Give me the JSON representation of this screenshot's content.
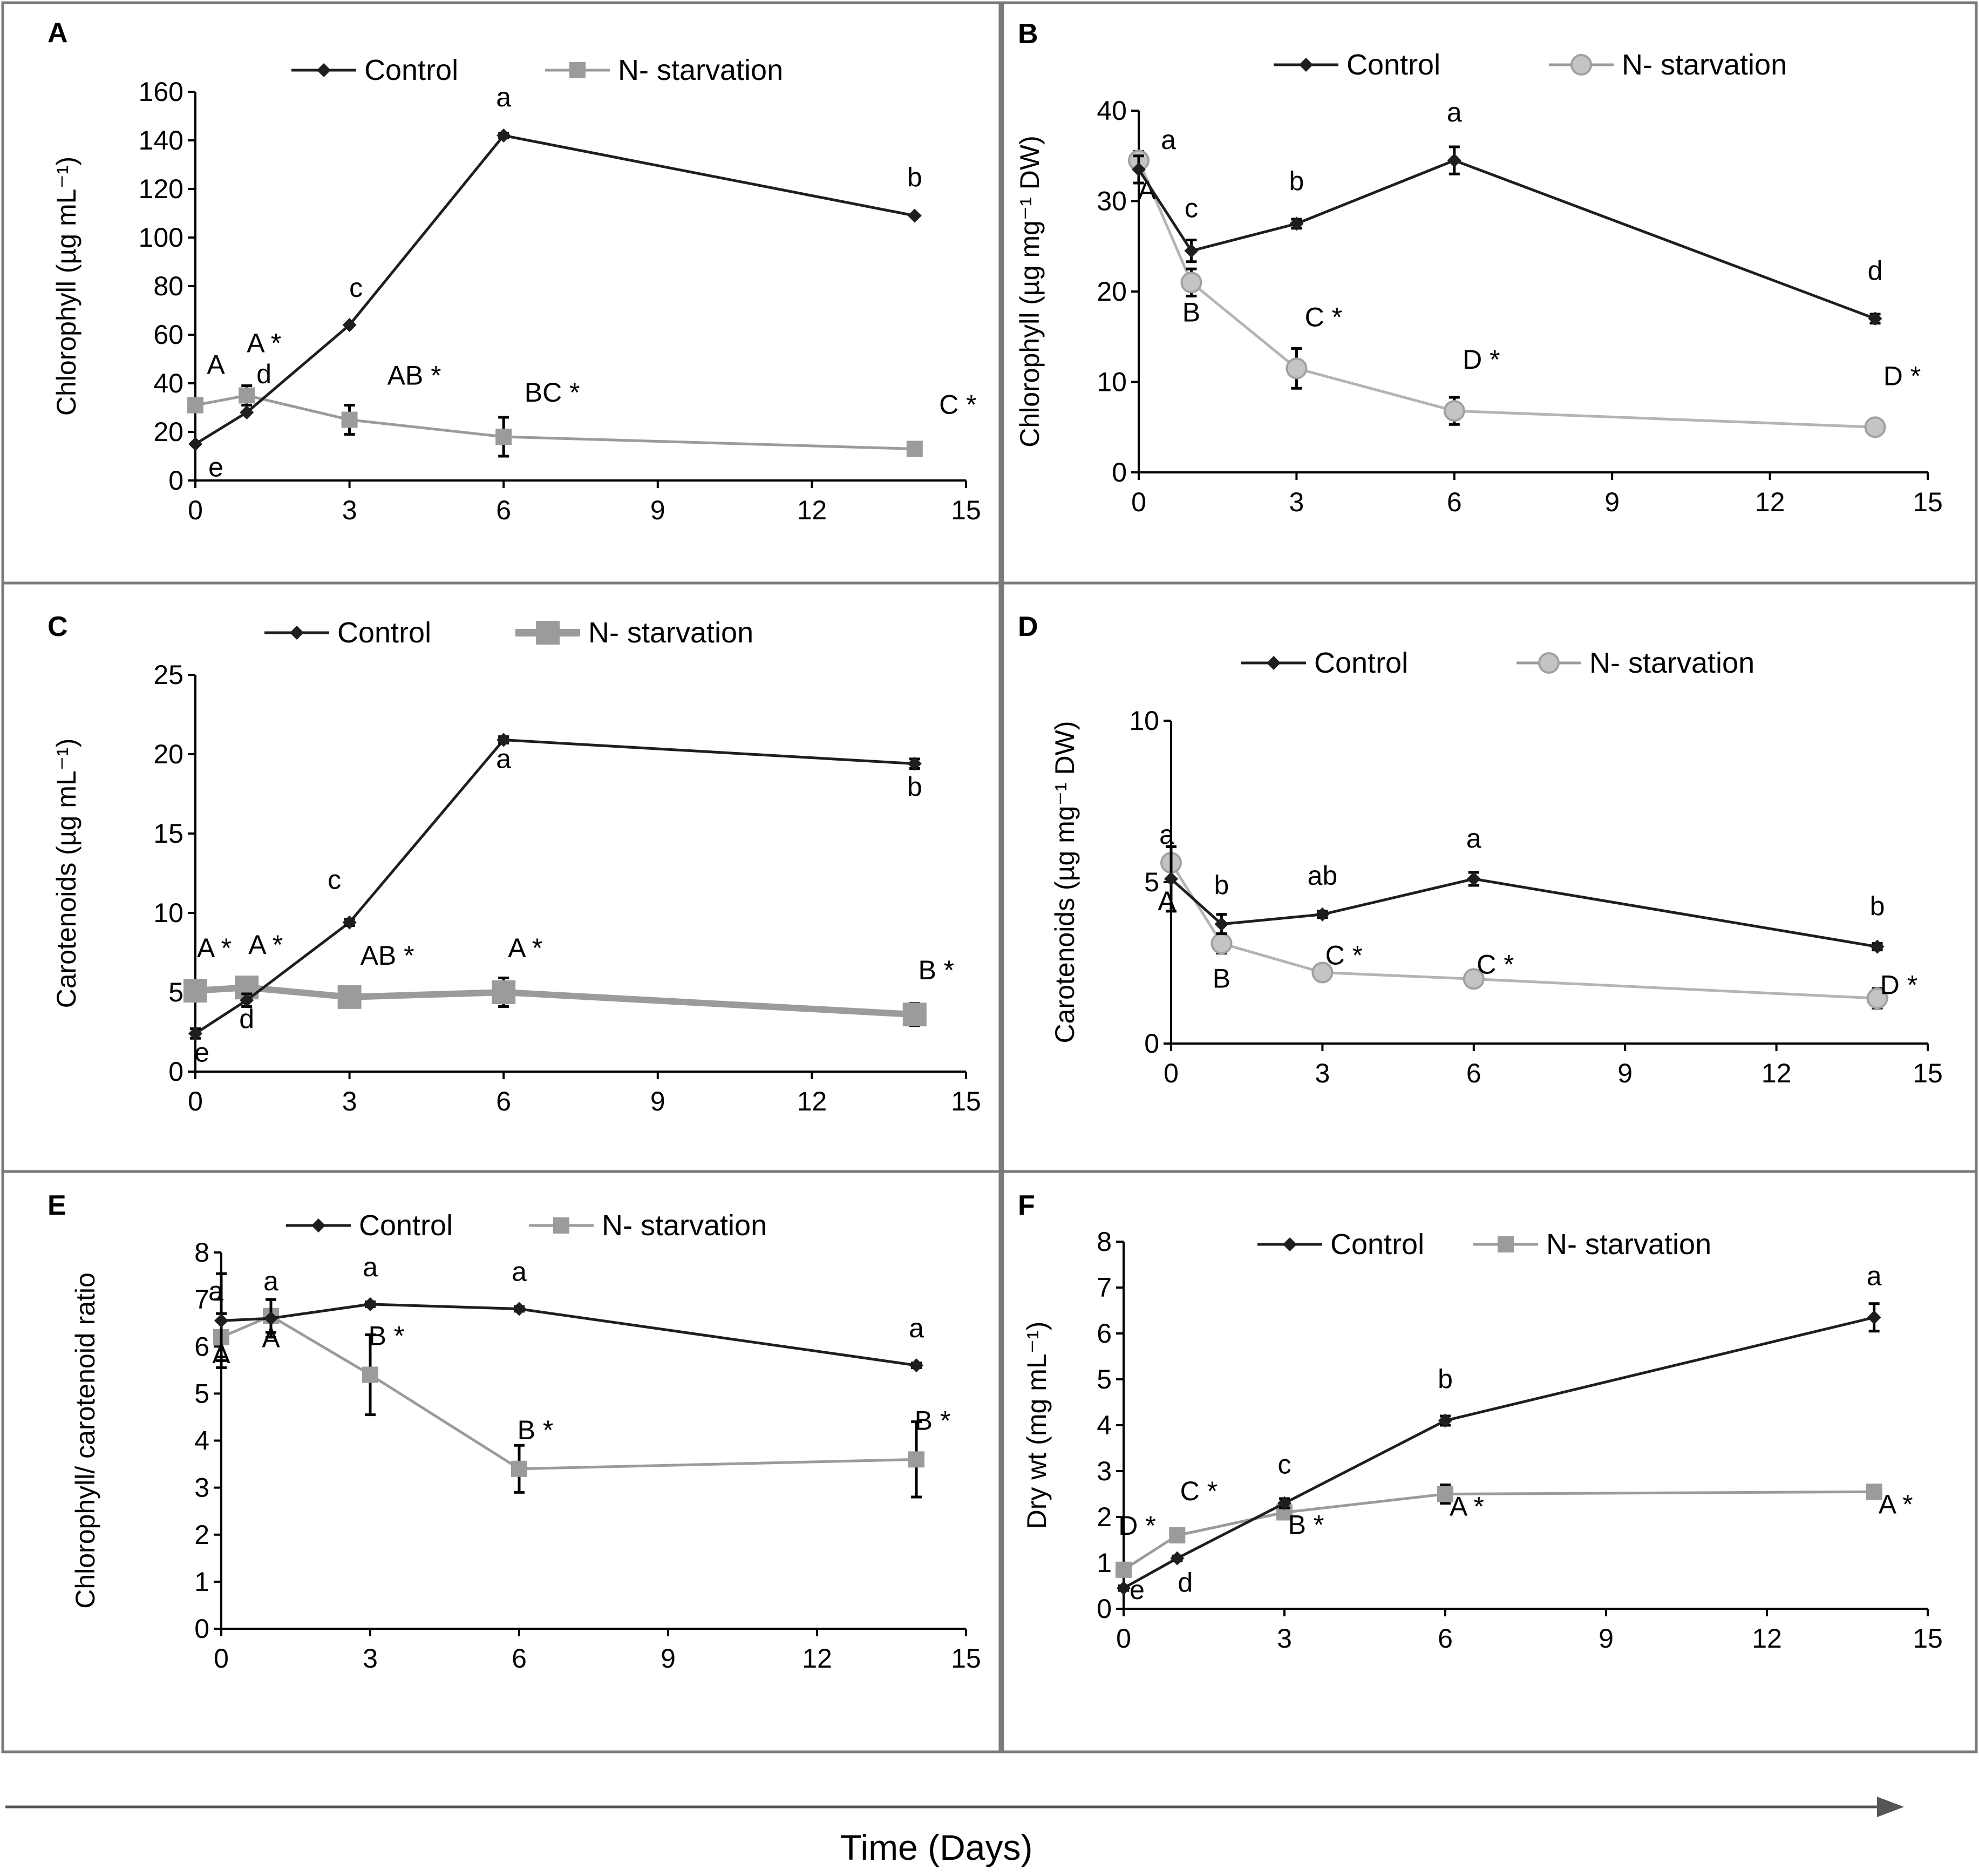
{
  "figure": {
    "xaxis_label": "Time (Days)",
    "colors": {
      "control": "#1e1e1e",
      "nstarv": "#9b9b9b",
      "nstarv_light": "#b4b4b4",
      "frame": "#7a7a7a"
    }
  },
  "chart_data": [
    {
      "panel": "A",
      "type": "line",
      "ylabel": "Chlorophyll (µg mL⁻¹)",
      "ylim": [
        0,
        160
      ],
      "yticks": [
        0,
        20,
        40,
        60,
        80,
        100,
        120,
        140,
        160
      ],
      "xlim": [
        0,
        15
      ],
      "xticks": [
        0,
        3,
        6,
        9,
        12,
        15
      ],
      "legend": [
        "Control",
        "N- starvation"
      ],
      "series": [
        {
          "name": "Control",
          "marker": "diamond",
          "x": [
            0,
            1,
            3,
            6,
            14
          ],
          "values": [
            15,
            28,
            64,
            142,
            109
          ],
          "err": [
            0,
            0,
            0,
            1,
            0
          ],
          "labels": [
            "e",
            "d",
            "c",
            "a",
            "b"
          ]
        },
        {
          "name": "N- starvation",
          "marker": "square",
          "x": [
            0,
            1,
            3,
            6,
            14
          ],
          "values": [
            31,
            35,
            25,
            18,
            13
          ],
          "err": [
            0,
            4,
            6,
            8,
            0
          ],
          "labels": [
            "A",
            "A *",
            "AB *",
            "BC *",
            "C *"
          ]
        }
      ]
    },
    {
      "panel": "B",
      "type": "line",
      "ylabel": "Chlorophyll (µg mg⁻¹ DW)",
      "ylim": [
        0,
        40
      ],
      "yticks": [
        0,
        10,
        20,
        30,
        40
      ],
      "xlim": [
        0,
        15
      ],
      "xticks": [
        0,
        3,
        6,
        9,
        12,
        15
      ],
      "legend": [
        "Control",
        "N- starvation"
      ],
      "series": [
        {
          "name": "Control",
          "marker": "diamond",
          "x": [
            0,
            1,
            3,
            6,
            14
          ],
          "values": [
            33.5,
            24.5,
            27.5,
            34.5,
            17
          ],
          "err": [
            1.5,
            1.2,
            0.5,
            1.5,
            0.5
          ],
          "labels": [
            "a",
            "c",
            "b",
            "a",
            "d"
          ]
        },
        {
          "name": "N- starvation",
          "marker": "circle",
          "x": [
            0,
            1,
            3,
            6,
            14
          ],
          "values": [
            34.5,
            21,
            11.5,
            6.8,
            5
          ],
          "err": [
            1,
            1.5,
            2.2,
            1.5,
            0.5
          ],
          "labels": [
            "A",
            "B",
            "C *",
            "D *",
            "D *"
          ]
        }
      ]
    },
    {
      "panel": "C",
      "type": "line",
      "ylabel": "Carotenoids (µg mL⁻¹)",
      "ylim": [
        0,
        25
      ],
      "yticks": [
        0,
        5,
        10,
        15,
        20,
        25
      ],
      "xlim": [
        0,
        15
      ],
      "xticks": [
        0,
        3,
        6,
        9,
        12,
        15
      ],
      "legend": [
        "Control",
        "N- starvation"
      ],
      "series": [
        {
          "name": "Control",
          "marker": "diamond",
          "x": [
            0,
            1,
            3,
            6,
            14
          ],
          "values": [
            2.4,
            4.5,
            9.4,
            20.9,
            19.4
          ],
          "err": [
            0.3,
            0.4,
            0.2,
            0.2,
            0.3
          ],
          "labels": [
            "e",
            "d",
            "c",
            "a",
            "b"
          ]
        },
        {
          "name": "N- starvation",
          "marker": "square-large",
          "x": [
            0,
            1,
            3,
            6,
            14
          ],
          "values": [
            5.1,
            5.3,
            4.7,
            5,
            3.6
          ],
          "err": [
            0.5,
            0.6,
            0.6,
            0.9,
            0.7
          ],
          "labels": [
            "A *",
            "A *",
            "AB *",
            "A *",
            "B *"
          ]
        }
      ]
    },
    {
      "panel": "D",
      "type": "line",
      "ylabel": "Carotenoids (µg mg⁻¹ DW)",
      "ylim": [
        0,
        10
      ],
      "yticks": [
        0,
        5,
        10
      ],
      "xlim": [
        0,
        15
      ],
      "xticks": [
        0,
        3,
        6,
        9,
        12,
        15
      ],
      "legend": [
        "Control",
        "N- starvation"
      ],
      "series": [
        {
          "name": "Control",
          "marker": "diamond",
          "x": [
            0,
            1,
            3,
            6,
            14
          ],
          "values": [
            5.1,
            3.7,
            4,
            5.1,
            3
          ],
          "err": [
            1,
            0.3,
            0.1,
            0.2,
            0.1
          ],
          "labels": [
            "a",
            "b",
            "ab",
            "a",
            "b"
          ]
        },
        {
          "name": "N- starvation",
          "marker": "circle",
          "x": [
            0,
            1,
            3,
            6,
            14
          ],
          "values": [
            5.6,
            3.1,
            2.2,
            2,
            1.4
          ],
          "err": [
            0.5,
            0.3,
            0.2,
            0.1,
            0.3
          ],
          "labels": [
            "A",
            "B",
            "C *",
            "C *",
            "D *"
          ]
        }
      ]
    },
    {
      "panel": "E",
      "type": "line",
      "ylabel": "Chlorophyll/ carotenoid ratio",
      "ylim": [
        0,
        8
      ],
      "yticks": [
        0,
        1,
        2,
        3,
        4,
        5,
        6,
        7,
        8
      ],
      "xlim": [
        0,
        15
      ],
      "xticks": [
        0,
        3,
        6,
        9,
        12,
        15
      ],
      "legend": [
        "Control",
        "N- starvation"
      ],
      "series": [
        {
          "name": "Control",
          "marker": "diamond",
          "x": [
            0,
            1,
            3,
            6,
            14
          ],
          "values": [
            6.55,
            6.6,
            6.9,
            6.8,
            5.6
          ],
          "err": [
            1,
            0.4,
            0.05,
            0.05,
            0.05
          ],
          "labels": [
            "a",
            "a",
            "a",
            "a",
            "a"
          ]
        },
        {
          "name": "N- starvation",
          "marker": "square",
          "x": [
            0,
            1,
            3,
            6,
            14
          ],
          "values": [
            6.2,
            6.65,
            5.4,
            3.4,
            3.6
          ],
          "err": [
            0.5,
            0.35,
            0.85,
            0.5,
            0.8
          ],
          "labels": [
            "A",
            "A",
            "B *",
            "B *",
            "B *"
          ]
        }
      ]
    },
    {
      "panel": "F",
      "type": "line",
      "ylabel": "Dry wt (mg mL⁻¹)",
      "ylim": [
        0,
        8
      ],
      "yticks": [
        0,
        1,
        2,
        3,
        4,
        5,
        6,
        7,
        8
      ],
      "xlim": [
        0,
        15
      ],
      "xticks": [
        0,
        3,
        6,
        9,
        12,
        15
      ],
      "legend": [
        "Control",
        "N- starvation"
      ],
      "series": [
        {
          "name": "Control",
          "marker": "diamond",
          "x": [
            0,
            1,
            3,
            6,
            14
          ],
          "values": [
            0.45,
            1.1,
            2.3,
            4.1,
            6.35
          ],
          "err": [
            0.05,
            0.05,
            0.1,
            0.1,
            0.3
          ],
          "labels": [
            "e",
            "d",
            "c",
            "b",
            "a"
          ]
        },
        {
          "name": "N- starvation",
          "marker": "square",
          "x": [
            0,
            1,
            3,
            6,
            14
          ],
          "values": [
            0.85,
            1.6,
            2.1,
            2.5,
            2.55
          ],
          "err": [
            0.05,
            0.1,
            0.1,
            0.2,
            0.1
          ],
          "labels": [
            "D *",
            "C *",
            "B *",
            "A *",
            "A *"
          ]
        }
      ]
    }
  ]
}
